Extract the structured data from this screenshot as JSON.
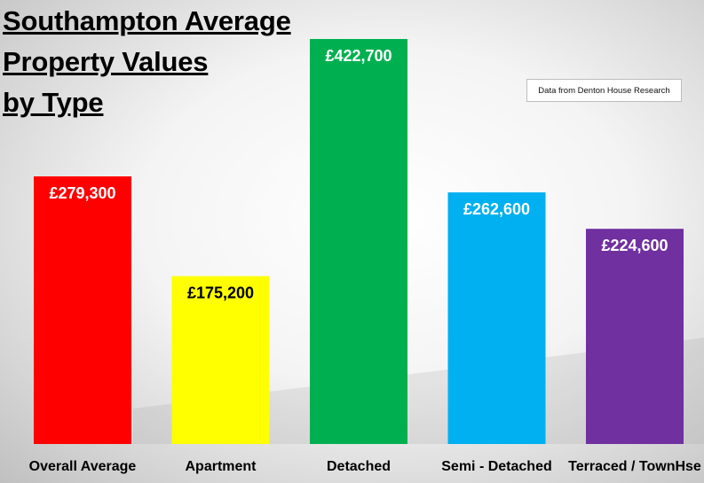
{
  "title_lines": [
    "Southampton Average",
    "Property Values",
    "by Type"
  ],
  "source_note": "Data from Denton House Research",
  "chart_data": {
    "type": "bar",
    "title": "Southampton Average Property Values by Type",
    "categories": [
      "Overall Average",
      "Apartment",
      "Detached",
      "Semi - Detached",
      "Terraced / TownHse"
    ],
    "values": [
      279300,
      175200,
      422700,
      262600,
      224600
    ],
    "value_labels": [
      "£279,300",
      "£175,200",
      "£422,700",
      "£262,600",
      "£224,600"
    ],
    "colors": [
      "#ff0000",
      "#ffff00",
      "#00b050",
      "#00b0f0",
      "#7030a0"
    ],
    "label_colors": [
      "#ffffff",
      "#000000",
      "#ffffff",
      "#ffffff",
      "#ffffff"
    ],
    "ylim": [
      0,
      422700
    ],
    "grid": false,
    "legend": "none"
  }
}
